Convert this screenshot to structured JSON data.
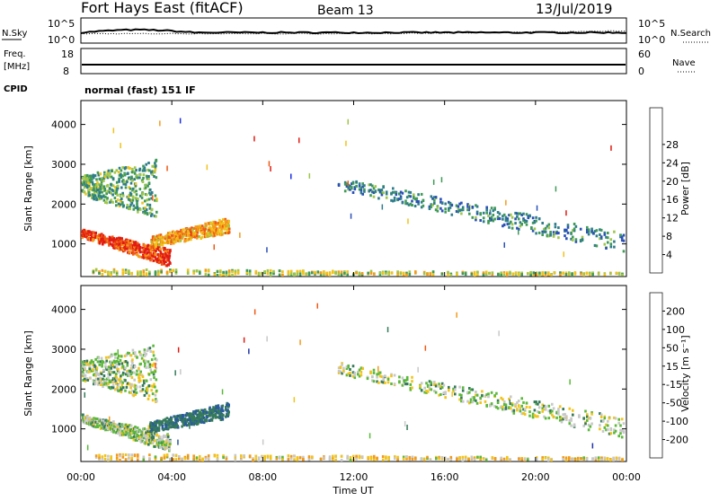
{
  "header": {
    "station": "Fort Hays East (fitACF)",
    "beam": "Beam 13",
    "date": "13/Jul/2019",
    "cpid": "normal (fast) 151 IF"
  },
  "top_panel": {
    "left_label": "N.Sky",
    "left_ticks": [
      "10^5",
      "10^0"
    ],
    "right_label": "N.Search",
    "right_ticks": [
      "10^5",
      "10^0"
    ]
  },
  "freq_panel": {
    "left_label_1": "Freq.",
    "left_label_2": "[MHz]",
    "left_ticks": [
      18,
      8
    ],
    "right_label": "Nave",
    "right_ticks": [
      60,
      0
    ],
    "cpid_label": "CPID"
  },
  "chart_data": [
    {
      "type": "heatmap",
      "name": "power",
      "ylabel": "Slant Range [km]",
      "ylim": [
        180,
        4600
      ],
      "yticks": [
        1000,
        2000,
        3000,
        4000
      ],
      "colorbar": {
        "label": "Power [dB]",
        "ticks": [
          4,
          8,
          12,
          16,
          20,
          24,
          28
        ],
        "colors": [
          "#1a2ee6",
          "#2a50b8",
          "#2f7d8a",
          "#3f9a57",
          "#9fc64a",
          "#f1c21a",
          "#f59a1a",
          "#ee5a14",
          "#e21b12"
        ]
      },
      "bands": [
        {
          "t": [
            0.0,
            3.9
          ],
          "r0": [
            1150,
            400
          ],
          "r1": [
            1350,
            850
          ],
          "level": 0.9
        },
        {
          "t": [
            3.0,
            6.5
          ],
          "r0": [
            900,
            1250
          ],
          "r1": [
            1150,
            1650
          ],
          "level": 0.7
        },
        {
          "t": [
            0.0,
            3.3
          ],
          "r0": [
            2200,
            1650
          ],
          "r1": [
            2700,
            3100
          ],
          "level": 0.4
        },
        {
          "t": [
            11.3,
            23.9
          ],
          "r0": [
            2350,
            750
          ],
          "r1": [
            2650,
            1250
          ],
          "level": 0.3
        },
        {
          "t": [
            0.5,
            23.9
          ],
          "r0": [
            200,
            200
          ],
          "r1": [
            350,
            260
          ],
          "level": 0.55
        }
      ]
    },
    {
      "type": "heatmap",
      "name": "velocity",
      "ylabel": "Slant Range [km]",
      "xlabel": "Time UT",
      "xlim": [
        0,
        24
      ],
      "xticks": [
        "00:00",
        "04:00",
        "08:00",
        "12:00",
        "16:00",
        "20:00",
        "00:00"
      ],
      "ylim": [
        180,
        4600
      ],
      "yticks": [
        1000,
        2000,
        3000,
        4000
      ],
      "colorbar": {
        "label": "Velocity [m s⁻¹]",
        "ticks": [
          "200",
          "100",
          "50",
          "15",
          "-15",
          "-50",
          "-100",
          "-200"
        ],
        "colors": [
          "#2233a8",
          "#2a5aa0",
          "#357a5a",
          "#5bb83a",
          "#c8c8c8",
          "#f2c418",
          "#f29a1a",
          "#ee5a14",
          "#e21b12"
        ]
      },
      "bands": [
        {
          "t": [
            0.0,
            3.9
          ],
          "r0": [
            1150,
            400
          ],
          "r1": [
            1350,
            850
          ],
          "level": 0.45
        },
        {
          "t": [
            3.0,
            6.5
          ],
          "r0": [
            900,
            1250
          ],
          "r1": [
            1150,
            1650
          ],
          "level": 0.3
        },
        {
          "t": [
            0.0,
            3.3
          ],
          "r0": [
            2200,
            1650
          ],
          "r1": [
            2700,
            3100
          ],
          "level": 0.45
        },
        {
          "t": [
            11.3,
            23.9
          ],
          "r0": [
            2350,
            750
          ],
          "r1": [
            2650,
            1250
          ],
          "level": 0.45
        },
        {
          "t": [
            0.5,
            23.9
          ],
          "r0": [
            200,
            200
          ],
          "r1": [
            350,
            260
          ],
          "level": 0.6
        }
      ]
    }
  ]
}
